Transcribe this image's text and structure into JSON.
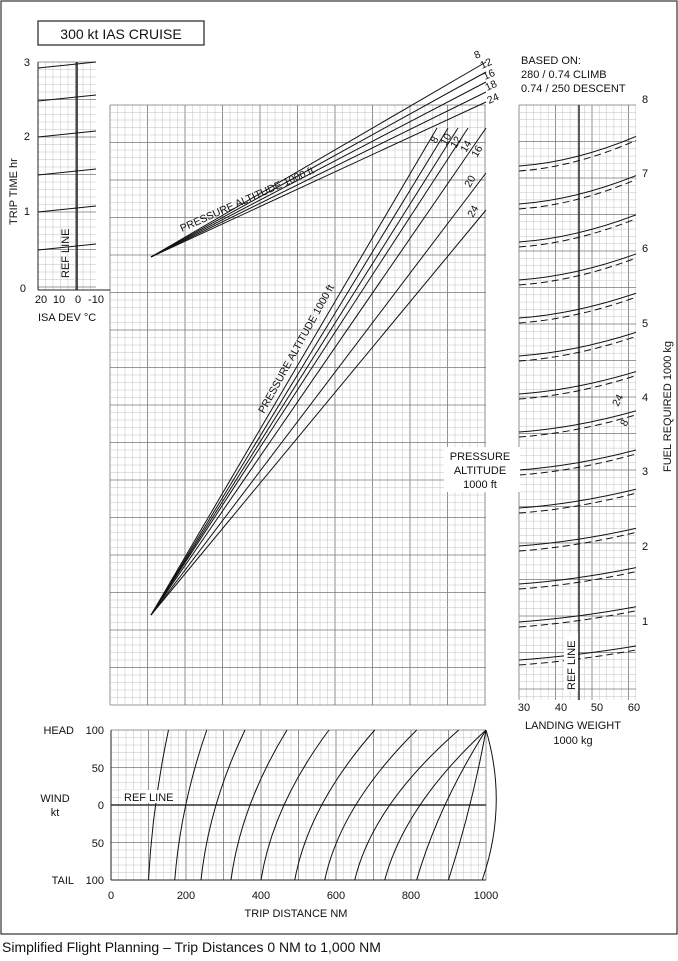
{
  "figure": {
    "caption": "Simplified Flight Planning – Trip Distances 0 NM to 1,000 NM"
  },
  "chart_data": {
    "type": "nomogram",
    "title": "300 kt IAS CRUISE",
    "trip_time": {
      "axis_label": "TRIP TIME  hr",
      "y_ticks": [
        "0",
        "1",
        "2",
        "3"
      ],
      "ylim": [
        0,
        3
      ],
      "isa_axis_label": "ISA DEV °C",
      "isa_ticks": [
        "20",
        "10",
        "0",
        "-10"
      ],
      "ref_line": "REF LINE"
    },
    "time_panel": {
      "label": "PRESSURE ALTITUDE  1000 ft",
      "altitudes": [
        "8",
        "12",
        "16",
        "18",
        "24"
      ]
    },
    "fuel_panel": {
      "label": "PRESSURE ALTITUDE  1000 ft",
      "altitudes": [
        "8",
        "10",
        "12",
        "14",
        "16",
        "20",
        "24"
      ]
    },
    "fuel": {
      "based_on": [
        "BASED ON:",
        "280 / 0.74 CLIMB",
        "0.74 / 250 DESCENT"
      ],
      "axis_label": "FUEL REQUIRED  1000 kg",
      "y_ticks": [
        "1",
        "2",
        "3",
        "4",
        "5",
        "6",
        "7",
        "8"
      ],
      "ylim": [
        0,
        8
      ],
      "pressure_altitude_label": [
        "PRESSURE",
        "ALTITUDE",
        "1000 ft"
      ],
      "curve_labels": [
        "24",
        "8"
      ],
      "landing_weight_label": [
        "LANDING WEIGHT",
        "1000 kg"
      ],
      "landing_weight_ticks": [
        "30",
        "40",
        "50",
        "60"
      ],
      "ref_line": "REF LINE",
      "ref_landing_weight": 45
    },
    "wind": {
      "axis_label": [
        "WIND",
        "kt"
      ],
      "head_label": "HEAD",
      "tail_label": "TAIL",
      "y_ticks": [
        "100",
        "50",
        "0",
        "50",
        "100"
      ],
      "ref_line": "REF LINE"
    },
    "distance": {
      "axis_label": "TRIP DISTANCE  NM",
      "x_ticks": [
        "0",
        "200",
        "400",
        "600",
        "800",
        "1000"
      ],
      "xlim": [
        0,
        1000
      ]
    },
    "series": {
      "time_altitude_lines": [
        {
          "name": "8",
          "distance_nm": [
            100,
            1000
          ],
          "relative_slope": 1.0
        },
        {
          "name": "12",
          "distance_nm": [
            100,
            1000
          ],
          "relative_slope": 0.96
        },
        {
          "name": "16",
          "distance_nm": [
            100,
            1000
          ],
          "relative_slope": 0.92
        },
        {
          "name": "18",
          "distance_nm": [
            100,
            1000
          ],
          "relative_slope": 0.89
        },
        {
          "name": "24",
          "distance_nm": [
            100,
            1000
          ],
          "relative_slope": 0.85
        }
      ],
      "fuel_altitude_lines": [
        {
          "name": "8",
          "relative_slope": 1.0
        },
        {
          "name": "10",
          "relative_slope": 0.97
        },
        {
          "name": "12",
          "relative_slope": 0.94
        },
        {
          "name": "14",
          "relative_slope": 0.91
        },
        {
          "name": "16",
          "relative_slope": 0.88
        },
        {
          "name": "20",
          "relative_slope": 0.82
        },
        {
          "name": "24",
          "relative_slope": 0.76
        }
      ],
      "wind_curve_bases_nm": [
        100,
        170,
        240,
        320,
        400,
        490,
        570,
        650,
        730,
        815,
        900,
        990
      ]
    }
  }
}
